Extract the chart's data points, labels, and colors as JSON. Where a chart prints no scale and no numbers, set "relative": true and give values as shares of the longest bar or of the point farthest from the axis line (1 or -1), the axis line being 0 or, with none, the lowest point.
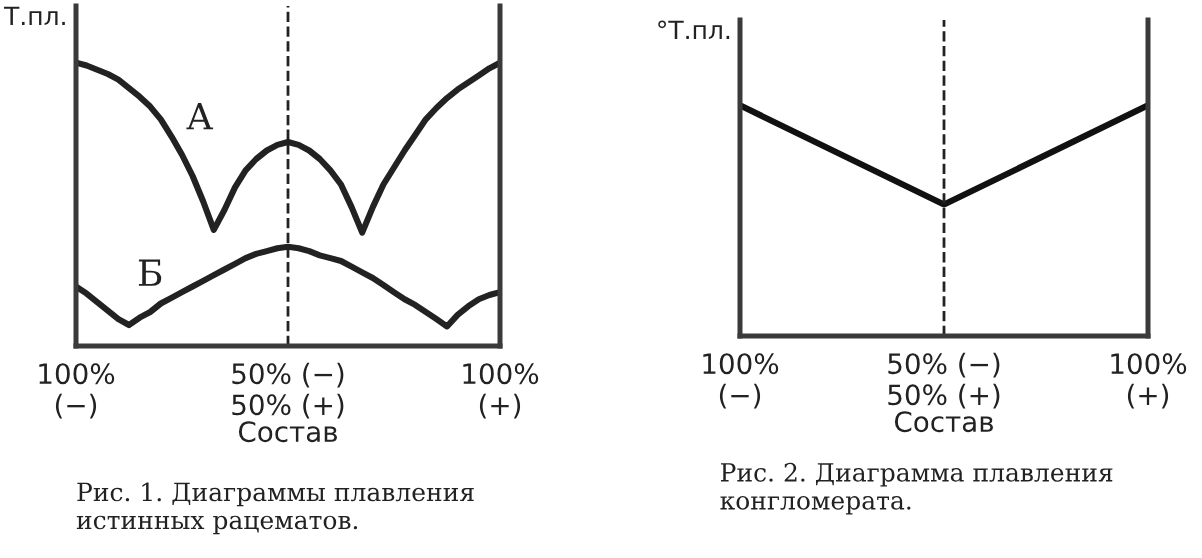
{
  "chart_data": [
    {
      "type": "line",
      "relative": true,
      "ylabel": "Т.пл.",
      "xlabel": "Состав",
      "line_style": "solid",
      "marker": "none",
      "grid": false,
      "legend": false,
      "categories": [
        "100%\n(−)",
        null,
        null,
        null,
        null,
        null,
        null,
        null,
        null,
        null,
        null,
        null,
        null,
        null,
        null,
        null,
        null,
        null,
        null,
        null,
        "50% (−)\n50% (+)",
        null,
        null,
        null,
        null,
        null,
        null,
        null,
        null,
        null,
        null,
        null,
        null,
        null,
        null,
        null,
        null,
        null,
        null,
        null,
        "100%\n(+)"
      ],
      "ref_lines": [
        {
          "axis": "x",
          "value": "50% (−)\n50% (+)",
          "line_style": "dashed",
          "color": "#222222"
        }
      ],
      "series": [
        {
          "name": "А",
          "color": "#222222",
          "values": [
            1,
            0.99,
            0.975,
            0.96,
            0.94,
            0.91,
            0.88,
            0.845,
            0.8,
            0.74,
            0.675,
            0.6,
            0.51,
            0.41,
            0.48,
            0.56,
            0.62,
            0.66,
            0.69,
            0.71,
            0.72,
            0.71,
            0.69,
            0.66,
            0.62,
            0.57,
            0.49,
            0.4,
            0.49,
            0.57,
            0.63,
            0.69,
            0.745,
            0.8,
            0.84,
            0.875,
            0.905,
            0.93,
            0.955,
            0.98,
            1
          ]
        },
        {
          "name": "Б",
          "color": "#222222",
          "values": [
            0.21,
            0.185,
            0.155,
            0.125,
            0.095,
            0.074,
            0.1,
            0.12,
            0.15,
            0.17,
            0.19,
            0.21,
            0.23,
            0.25,
            0.27,
            0.29,
            0.31,
            0.325,
            0.335,
            0.345,
            0.35,
            0.345,
            0.335,
            0.32,
            0.31,
            0.3,
            0.28,
            0.26,
            0.24,
            0.215,
            0.19,
            0.165,
            0.145,
            0.12,
            0.095,
            0.069,
            0.11,
            0.14,
            0.165,
            0.18,
            0.19
          ]
        }
      ],
      "annotations": [
        "Рис. 1. Диаграммы плавления\nистинных рацематов."
      ]
    },
    {
      "type": "line",
      "relative": true,
      "ylabel": "°Т.пл.",
      "xlabel": "Состав",
      "line_style": "solid",
      "marker": "none",
      "grid": false,
      "legend": false,
      "categories": [
        "100%\n(−)",
        "50% (−)\n50% (+)",
        "100%\n(+)"
      ],
      "ref_lines": [
        {
          "axis": "x",
          "value": "50% (−)\n50% (+)",
          "line_style": "dashed",
          "color": "#222222"
        }
      ],
      "series": [
        {
          "color": "#111111",
          "values": [
            1,
            0.57,
            1
          ]
        }
      ],
      "annotations": [
        "Рис. 2. Диаграмма плавления\nконгломерата."
      ]
    }
  ]
}
